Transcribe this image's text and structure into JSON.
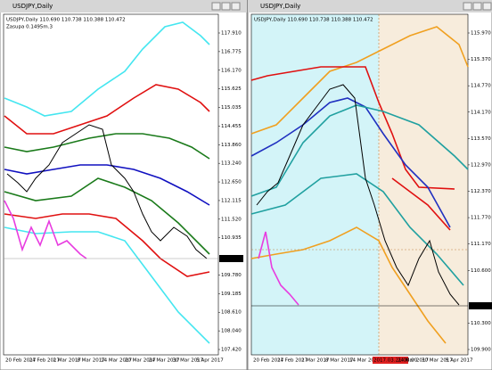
{
  "windows": [
    {
      "title": "USDJPY,Daily",
      "header": "USDJPY,Daily  110.690 110.738 110.388 110.472",
      "indicator": "Zasupa 0.1495m.3",
      "price_labels": [
        "117.910",
        "116.775",
        "116.170",
        "115.625",
        "115.035",
        "114.455",
        "113.860",
        "113.240",
        "112.650",
        "112.115",
        "111.520",
        "110.935",
        "110.472",
        "109.780",
        "109.185",
        "108.610",
        "108.040",
        "107.420"
      ],
      "date_labels": [
        "20 Feb 2017",
        "24 Feb 2017",
        "2 Mar 2017",
        "8 Mar 2017",
        "14 Mar 2017",
        "20 Mar 2017",
        "24 Mar 2017",
        "30 Mar 2017",
        "5 Apr 2017"
      ]
    },
    {
      "title": "USDJPY,Daily",
      "header": "USDJPY,Daily  110.690 110.738 110.388 110.472",
      "price_labels": [
        "115.970",
        "115.370",
        "114.770",
        "114.170",
        "113.570",
        "112.970",
        "112.370",
        "111.770",
        "111.170",
        "110.600",
        "110.472",
        "110.300",
        "109.900"
      ],
      "date_labels": [
        "20 Feb 2017",
        "24 Feb 2017",
        "2 Mar 2017",
        "8 Mar 2017",
        "14 Mar 2017",
        "2017.03.21 00:00",
        "24 Mar 2017",
        "30 Mar 2017",
        "5 Apr 2017"
      ]
    }
  ]
}
